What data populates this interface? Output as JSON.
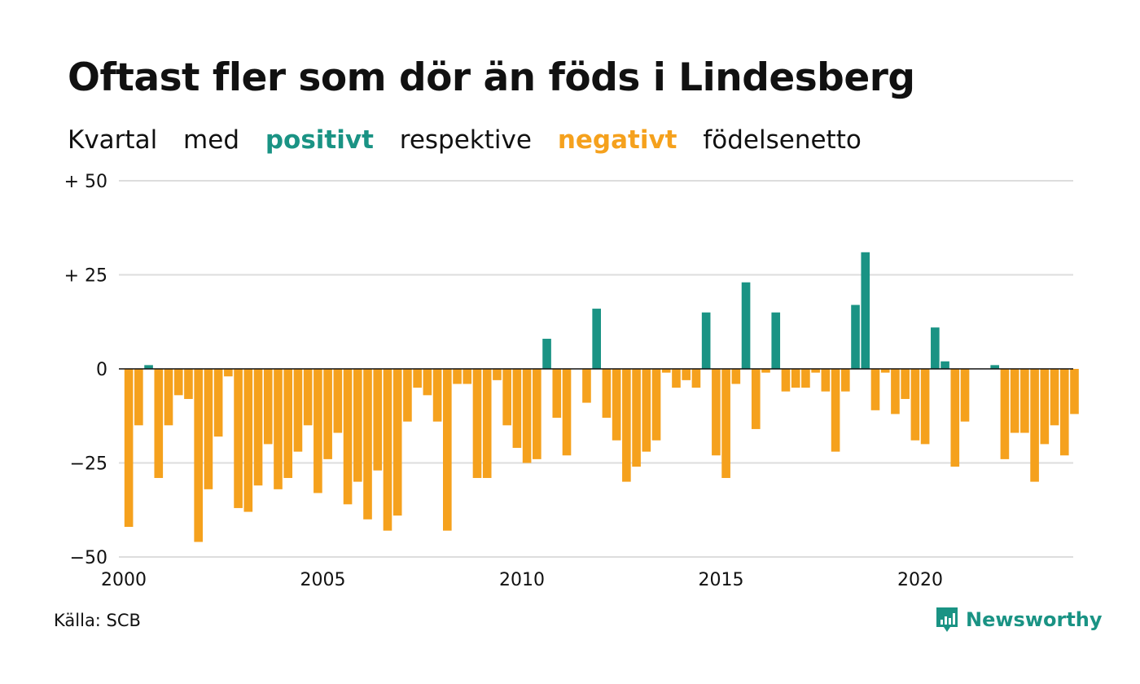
{
  "title": "Oftast fler som dör än föds i Lindesberg",
  "subtitle": {
    "part1": "Kvartal",
    "part2": "med",
    "positive_word": "positivt",
    "part3": "respektive",
    "negative_word": "negativt",
    "part4": "födelsenetto"
  },
  "colors": {
    "positive": "#1a9384",
    "negative": "#f5a11d",
    "grid": "#dddddd",
    "axis": "#111111"
  },
  "source": "Källa: SCB",
  "brand": {
    "name": "Newsworthy",
    "icon": "newsworthy-chart-bubble-icon"
  },
  "chart_data": {
    "type": "bar",
    "title": "Oftast fler som dör än föds i Lindesberg",
    "subtitle": "Kvartal med positivt respektive negativt födelsenetto",
    "xlabel": "",
    "ylabel": "",
    "x_ticks": [
      "2000",
      "2005",
      "2010",
      "2015",
      "2020"
    ],
    "y_ticks": [
      {
        "value": 50,
        "label": "+ 50"
      },
      {
        "value": 25,
        "label": "+ 25"
      },
      {
        "value": 0,
        "label": "0"
      },
      {
        "value": -25,
        "label": "−25"
      },
      {
        "value": -50,
        "label": "−50"
      }
    ],
    "ylim": [
      -50,
      50
    ],
    "xlim": [
      2000,
      2024
    ],
    "grid": true,
    "legend": "none",
    "series": [
      {
        "start_quarter": "2000 Q1",
        "values": [
          -42,
          -15,
          1,
          -29,
          -15,
          -7,
          -8,
          -46,
          -32,
          -18,
          -2,
          -37,
          -38,
          -31,
          -20,
          -32,
          -29,
          -22,
          -15,
          -33,
          -24,
          -17,
          -36,
          -30,
          -40,
          -27,
          -43,
          -39,
          -14,
          -5,
          -7,
          -14,
          -43,
          -4,
          -4,
          -29,
          -29,
          -3,
          -15,
          -21,
          -25,
          -24,
          8,
          -13,
          -23,
          0,
          -9,
          16,
          -13,
          -19,
          -30,
          -26,
          -22,
          -19,
          -1,
          -5,
          -3,
          -5,
          15,
          -23,
          -29,
          -4,
          23,
          -16,
          -1,
          15,
          -6,
          -5,
          -5,
          -1,
          -6,
          -22,
          -6,
          17,
          31,
          -11,
          -1,
          -12,
          -8,
          -19,
          -20,
          11,
          2,
          -26,
          -14,
          0,
          0,
          1,
          -24,
          -17,
          -17,
          -30,
          -20,
          -15,
          -23,
          -12
        ]
      }
    ]
  }
}
